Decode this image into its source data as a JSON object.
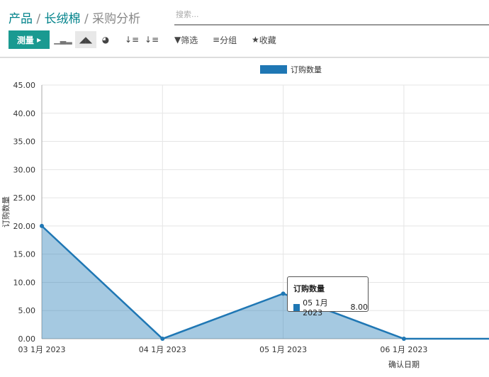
{
  "breadcrumb": {
    "items": [
      "产品",
      "长绒棉"
    ],
    "current": "采购分析",
    "sep": "/"
  },
  "search": {
    "placeholder": "搜索..."
  },
  "toolbar": {
    "measure_label": "测量",
    "filter_label": "筛选",
    "group_label": "分组",
    "favorites_label": "收藏"
  },
  "chart_data": {
    "type": "area",
    "legend": [
      "订购数量"
    ],
    "legend_position": "top-center",
    "xlabel": "确认日期",
    "ylabel": "订购数量",
    "categories": [
      "03 1月 2023",
      "04 1月 2023",
      "05 1月 2023",
      "06 1月 2023"
    ],
    "series": [
      {
        "name": "订购数量",
        "values": [
          20,
          0,
          8,
          0
        ],
        "color": "#1f77b4"
      }
    ],
    "ylim": [
      0,
      45
    ],
    "yticks": [
      "0.00",
      "5.00",
      "10.00",
      "15.00",
      "20.00",
      "25.00",
      "30.00",
      "35.00",
      "40.00",
      "45.00"
    ],
    "grid": true
  },
  "tooltip": {
    "title": "订购数量",
    "label": "05 1月 2023",
    "value": "8.00"
  }
}
